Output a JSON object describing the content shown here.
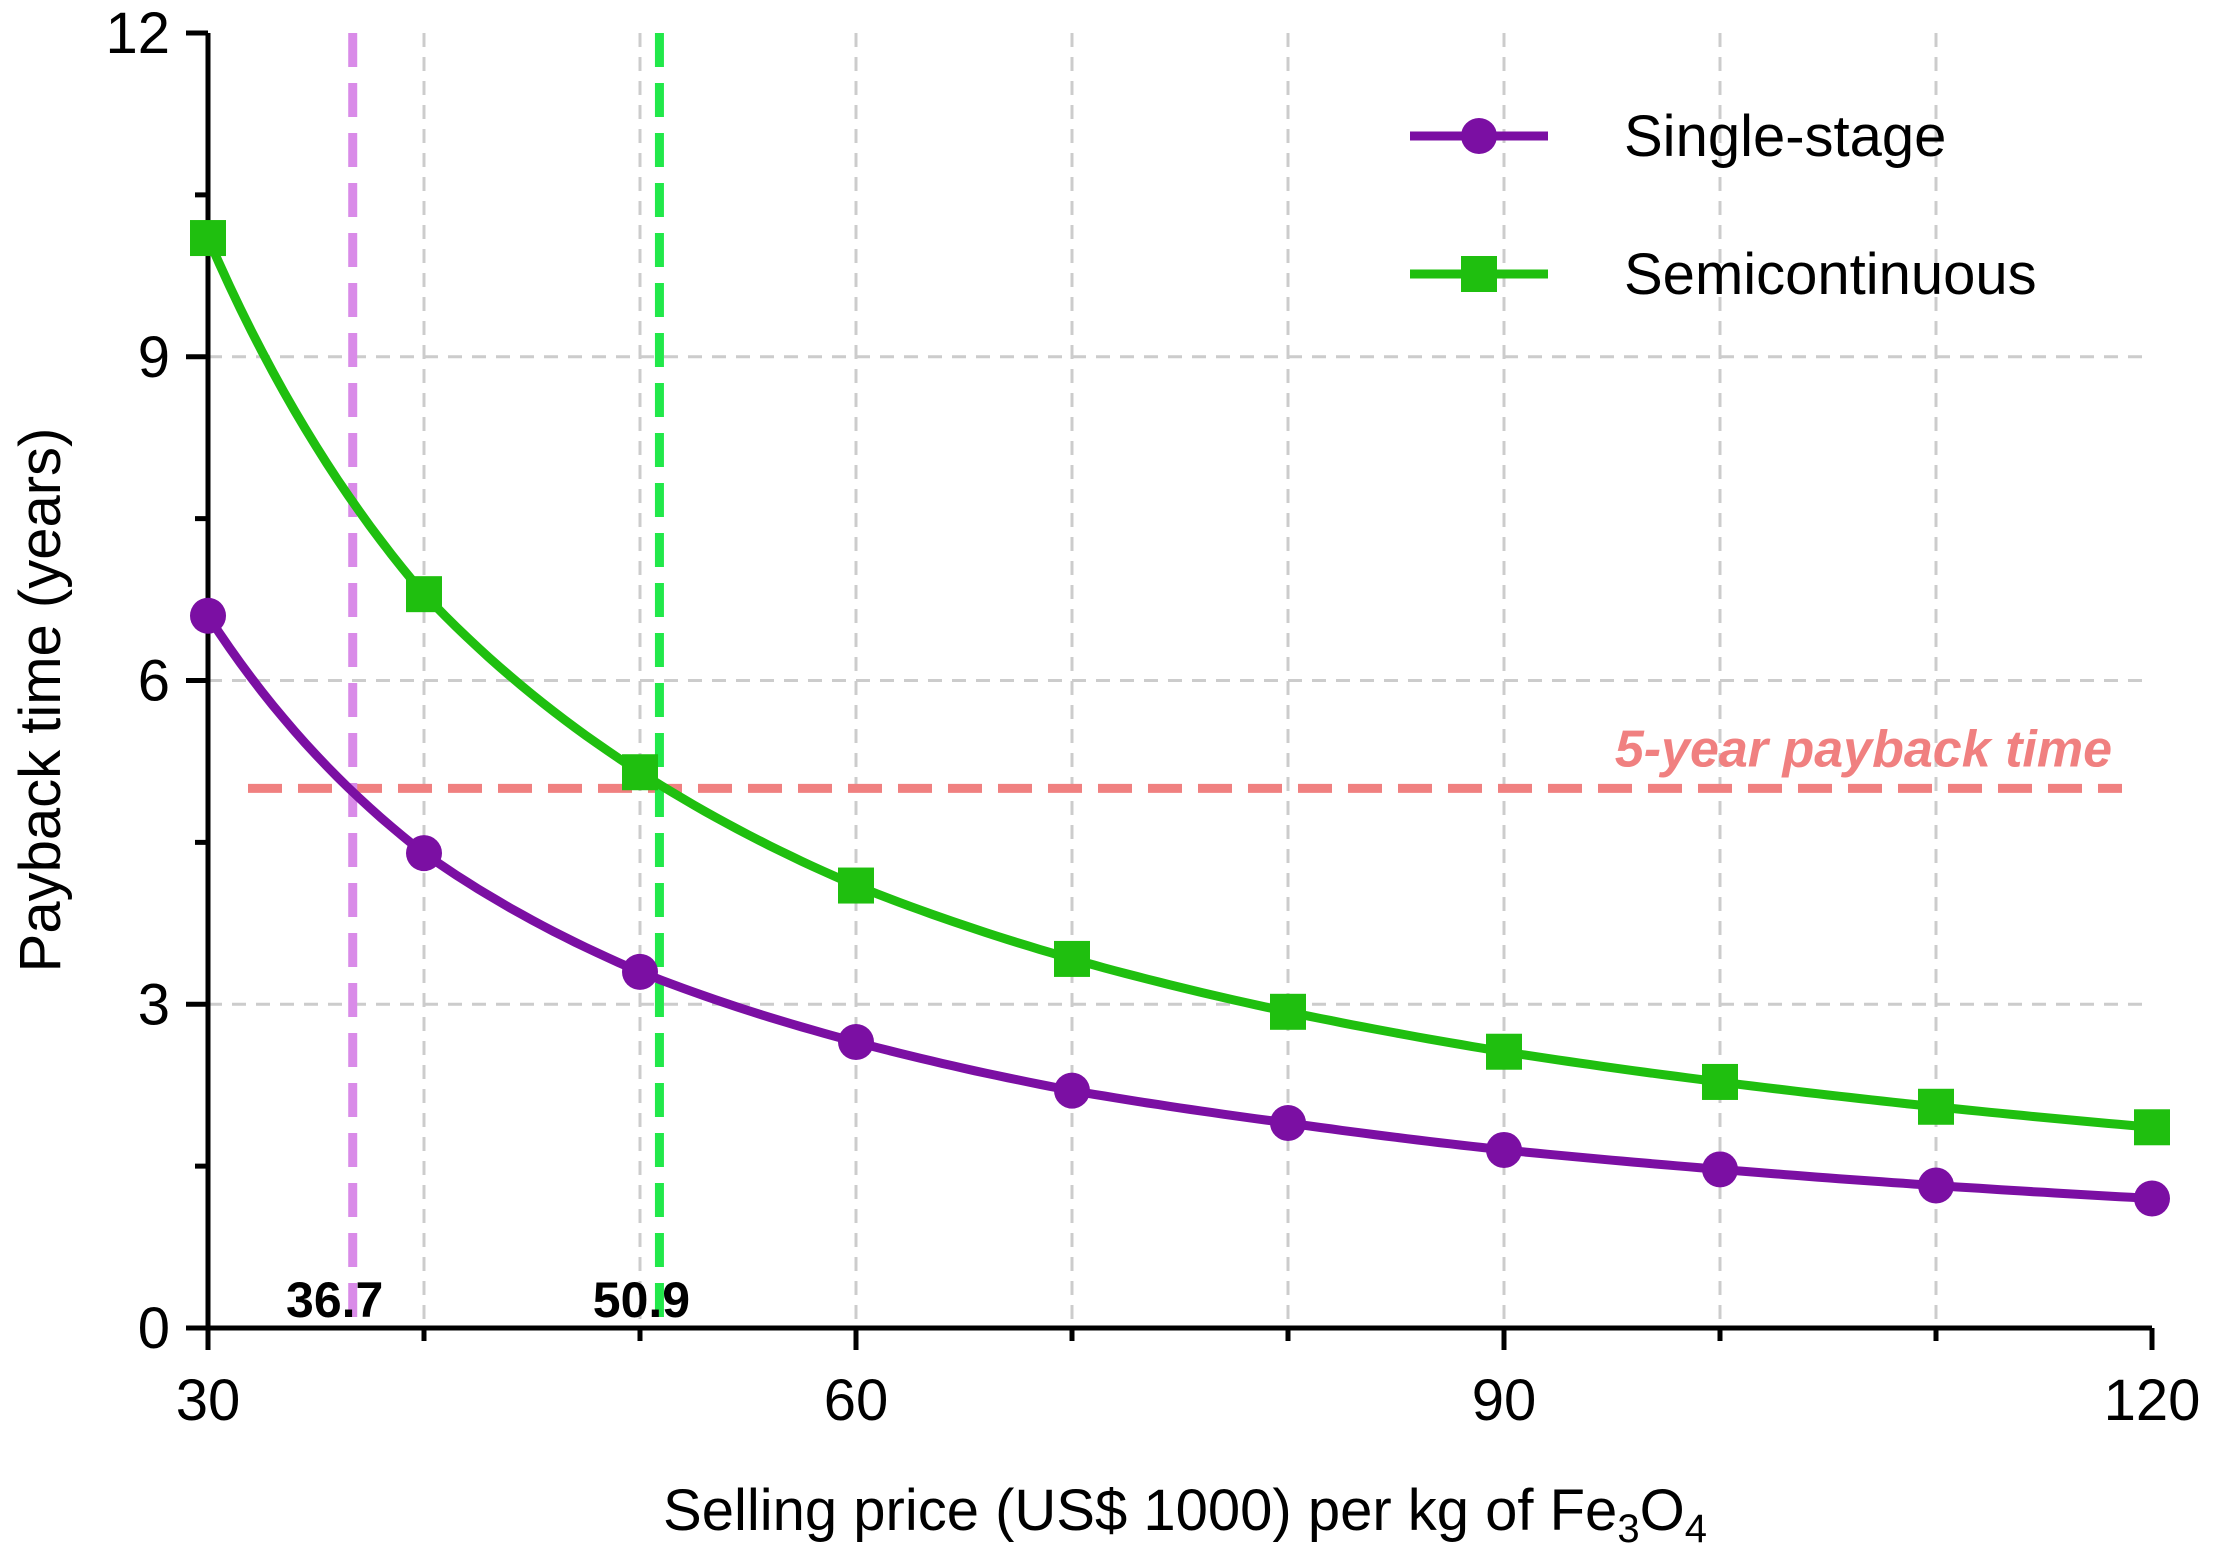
{
  "chart_data": {
    "type": "line",
    "xlabel": "Selling price (US$ 1000) per kg of Fe3O4",
    "xlabel_parts": {
      "pre": "Selling price (US$ 1000) per kg of Fe",
      "sub1": "3",
      "mid": "O",
      "sub2": "4"
    },
    "ylabel": "Payback time (years)",
    "xlim": [
      30,
      120
    ],
    "ylim": [
      0,
      12
    ],
    "x_ticks": [
      30,
      60,
      90,
      120
    ],
    "y_ticks": [
      0,
      3,
      6,
      9,
      12
    ],
    "x_grid": [
      40,
      50,
      60,
      70,
      80,
      90,
      100,
      110
    ],
    "y_grid": [
      3,
      6,
      9
    ],
    "grid": true,
    "legend_position": "top-right",
    "series": [
      {
        "name": "Single-stage",
        "color": "#7b0fa3",
        "marker": "circle",
        "x": [
          30,
          40,
          50,
          60,
          70,
          80,
          90,
          100,
          110,
          120
        ],
        "y": [
          6.6,
          4.4,
          3.3,
          2.65,
          2.2,
          1.9,
          1.65,
          1.47,
          1.32,
          1.2
        ]
      },
      {
        "name": "Semicontinuous",
        "color": "#1fbf0f",
        "marker": "square",
        "x": [
          30,
          40,
          50,
          60,
          70,
          80,
          90,
          100,
          110,
          120
        ],
        "y": [
          10.1,
          6.8,
          5.15,
          4.1,
          3.42,
          2.93,
          2.56,
          2.28,
          2.05,
          1.86
        ]
      }
    ],
    "reference_lines": [
      {
        "orientation": "horizontal",
        "value": 5,
        "color": "#f08080",
        "label": "5-year payback time"
      },
      {
        "orientation": "vertical",
        "value": 36.7,
        "color": "#d98be8",
        "label": "36.7"
      },
      {
        "orientation": "vertical",
        "value": 50.9,
        "color": "#22e84a",
        "label": "50.9"
      }
    ]
  }
}
